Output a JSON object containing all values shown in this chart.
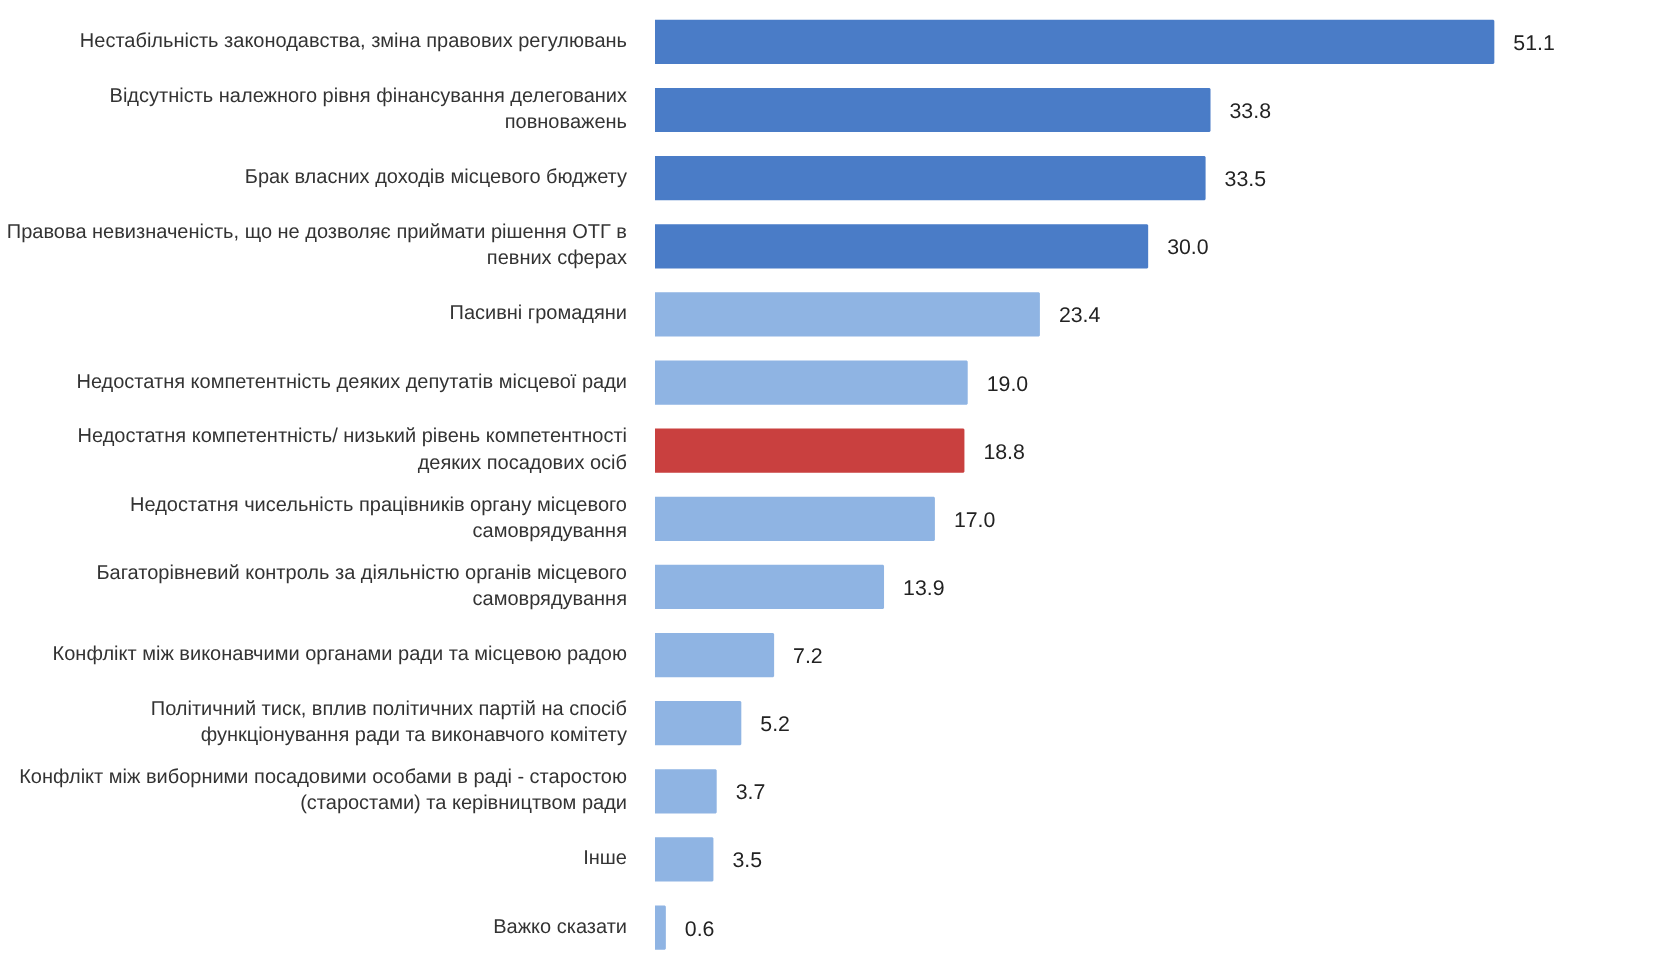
{
  "chart_data": {
    "type": "bar",
    "orientation": "horizontal",
    "categories": [
      "Нестабільність законодавства, зміна правових регулювань",
      "Відсутність належного рівня фінансування делегованих повноважень",
      "Брак власних доходів місцевого бюджету",
      "Правова невизначеність, що не дозволяє приймати рішення ОТГ в певних сферах",
      "Пасивні громадяни",
      "Недостатня компетентність деяких депутатів місцевої ради",
      "Недостатня компетентність/ низький рівень компетентності деяких посадових осіб",
      "Недостатня чисельність працівників органу місцевого самоврядування",
      "Багаторівневий контроль за діяльністю органів місцевого самоврядування",
      "Конфлікт між виконавчими органами ради та місцевою радою",
      "Політичний тиск, вплив політичних партій на спосіб функціонування ради та виконавчого комітету",
      "Конфлікт між виборними посадовими особами в раді - старостою (старостами) та керівництвом ради",
      "Інше",
      "Важко сказати"
    ],
    "values": [
      51.1,
      33.8,
      33.5,
      30.0,
      23.4,
      19.0,
      18.8,
      17.0,
      13.9,
      7.2,
      5.2,
      3.7,
      3.5,
      0.6
    ],
    "colors": [
      "#4a7cc7",
      "#4a7cc7",
      "#4a7cc7",
      "#4a7cc7",
      "#8fb4e3",
      "#8fb4e3",
      "#c9403f",
      "#8fb4e3",
      "#8fb4e3",
      "#8fb4e3",
      "#8fb4e3",
      "#8fb4e3",
      "#8fb4e3",
      "#8fb4e3"
    ],
    "value_labels": [
      "51.1",
      "33.8",
      "33.5",
      "30.0",
      "23.4",
      "19.0",
      "18.8",
      "17.0",
      "13.9",
      "7.2",
      "5.2",
      "3.7",
      "3.5",
      "0.6"
    ]
  }
}
